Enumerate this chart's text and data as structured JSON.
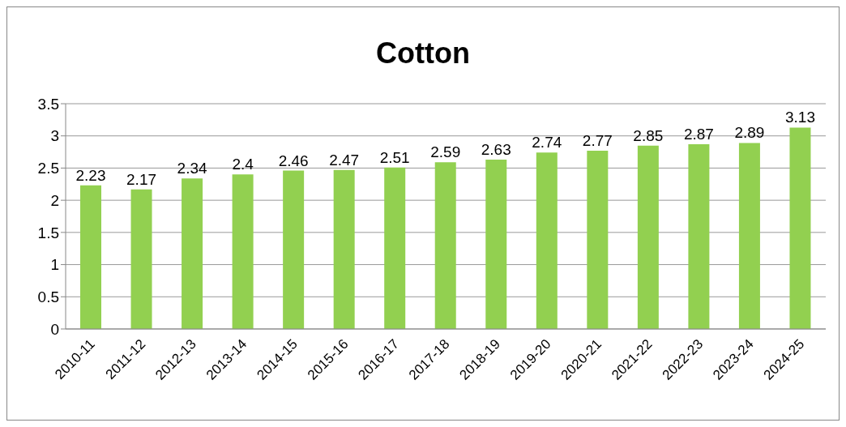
{
  "chart_data": {
    "type": "bar",
    "title": "Cotton",
    "categories": [
      "2010-11",
      "2011-12",
      "2012-13",
      "2013-14",
      "2014-15",
      "2015-16",
      "2016-17",
      "2017-18",
      "2018-19",
      "2019-20",
      "2020-21",
      "2021-22",
      "2022-23",
      "2023-24",
      "2024-25"
    ],
    "values": [
      2.23,
      2.17,
      2.34,
      2.4,
      2.46,
      2.47,
      2.51,
      2.59,
      2.63,
      2.74,
      2.77,
      2.85,
      2.87,
      2.89,
      3.13
    ],
    "color": "#92d050",
    "ylim": [
      0,
      3.5
    ],
    "yticks": [
      0,
      0.5,
      1,
      1.5,
      2,
      2.5,
      3,
      3.5
    ],
    "grid": "y",
    "data_labels": true
  }
}
